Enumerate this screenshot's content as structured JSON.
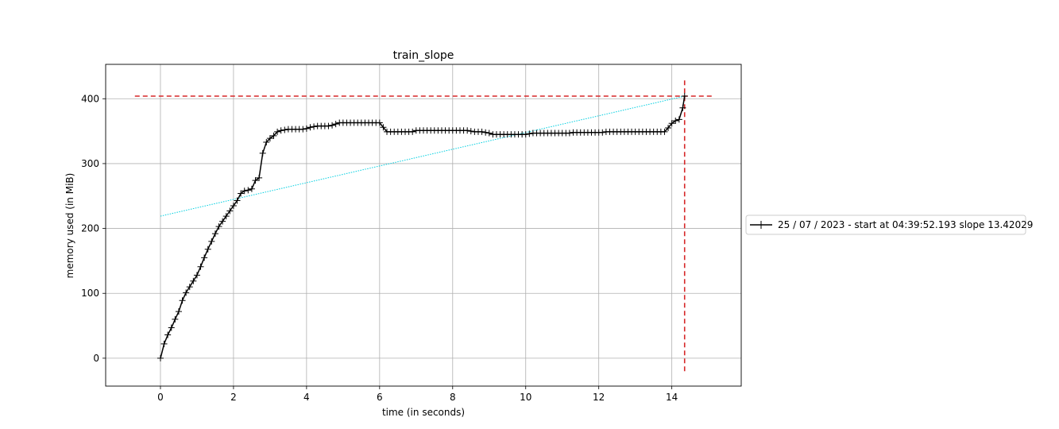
{
  "chart_data": {
    "type": "line",
    "title": "train_slope",
    "xlabel": "time (in seconds)",
    "ylabel": "memory used (in MiB)",
    "xlim": [
      -1.5,
      15.9
    ],
    "ylim": [
      -43,
      453
    ],
    "x_ticks": [
      0,
      2,
      4,
      6,
      8,
      10,
      12,
      14
    ],
    "y_ticks": [
      0,
      100,
      200,
      300,
      400
    ],
    "grid": true,
    "legend_position": "right",
    "colors": {
      "series": "#000000",
      "slope_line": "#00cfe0",
      "max_marker": "#d62728",
      "grid": "#b0b0b0"
    },
    "series": [
      {
        "name": "25 / 07 / 2023 - start at 04:39:52.193 slope 13.42029",
        "marker": "plus",
        "x": [
          0,
          0.1,
          0.2,
          0.3,
          0.4,
          0.5,
          0.6,
          0.7,
          0.8,
          0.9,
          1.0,
          1.1,
          1.2,
          1.3,
          1.4,
          1.5,
          1.6,
          1.7,
          1.8,
          1.9,
          2.0,
          2.1,
          2.2,
          2.3,
          2.4,
          2.5,
          2.6,
          2.7,
          2.8,
          2.9,
          3.0,
          3.1,
          3.2,
          3.3,
          3.4,
          3.5,
          3.6,
          3.7,
          3.8,
          3.9,
          4.0,
          4.1,
          4.2,
          4.3,
          4.4,
          4.5,
          4.6,
          4.7,
          4.8,
          4.9,
          5.0,
          5.1,
          5.2,
          5.3,
          5.4,
          5.5,
          5.6,
          5.7,
          5.8,
          5.9,
          6.0,
          6.1,
          6.2,
          6.3,
          6.4,
          6.5,
          6.6,
          6.7,
          6.8,
          6.9,
          7.0,
          7.1,
          7.2,
          7.3,
          7.4,
          7.5,
          7.6,
          7.7,
          7.8,
          7.9,
          8.0,
          8.1,
          8.2,
          8.3,
          8.4,
          8.5,
          8.6,
          8.7,
          8.8,
          8.9,
          9.0,
          9.1,
          9.2,
          9.3,
          9.4,
          9.5,
          9.6,
          9.7,
          9.8,
          9.9,
          10.0,
          10.1,
          10.2,
          10.3,
          10.4,
          10.5,
          10.6,
          10.7,
          10.8,
          10.9,
          11.0,
          11.1,
          11.2,
          11.3,
          11.4,
          11.5,
          11.6,
          11.7,
          11.8,
          11.9,
          12.0,
          12.1,
          12.2,
          12.3,
          12.4,
          12.5,
          12.6,
          12.7,
          12.8,
          12.9,
          13.0,
          13.1,
          13.2,
          13.3,
          13.4,
          13.5,
          13.6,
          13.7,
          13.8,
          13.9,
          14.0,
          14.1,
          14.2,
          14.3,
          14.35
        ],
        "y": [
          0,
          22,
          36,
          47,
          60,
          72,
          89,
          101,
          110,
          119,
          128,
          141,
          155,
          168,
          180,
          192,
          203,
          211,
          219,
          227,
          235,
          243,
          254,
          258,
          259,
          261,
          274,
          278,
          316,
          333,
          339,
          343,
          349,
          351,
          352,
          353,
          353,
          353,
          353,
          353,
          354,
          356,
          357,
          358,
          358,
          358,
          358,
          359,
          361,
          363,
          363,
          363,
          363,
          363,
          363,
          363,
          363,
          363,
          363,
          363,
          363,
          356,
          349,
          349,
          349,
          349,
          349,
          349,
          349,
          349,
          351,
          351,
          351,
          351,
          351,
          351,
          351,
          351,
          351,
          351,
          351,
          351,
          351,
          351,
          351,
          350,
          349,
          349,
          349,
          348,
          347,
          345,
          345,
          345,
          345,
          345,
          345,
          345,
          345,
          345,
          345,
          346,
          347,
          347,
          347,
          347,
          347,
          347,
          347,
          347,
          347,
          347,
          347,
          348,
          348,
          348,
          348,
          348,
          348,
          348,
          348,
          348,
          349,
          349,
          349,
          349,
          349,
          349,
          349,
          349,
          349,
          349,
          349,
          349,
          349,
          349,
          349,
          349,
          349,
          355,
          362,
          366,
          368,
          386,
          404
        ]
      }
    ],
    "slope_line": {
      "x": [
        0,
        14.35
      ],
      "y": [
        219,
        404
      ]
    },
    "max_hline": {
      "y": 404,
      "x": [
        -0.7,
        15.1
      ]
    },
    "max_vline": {
      "x": 14.35,
      "y": [
        -20,
        432
      ]
    }
  }
}
